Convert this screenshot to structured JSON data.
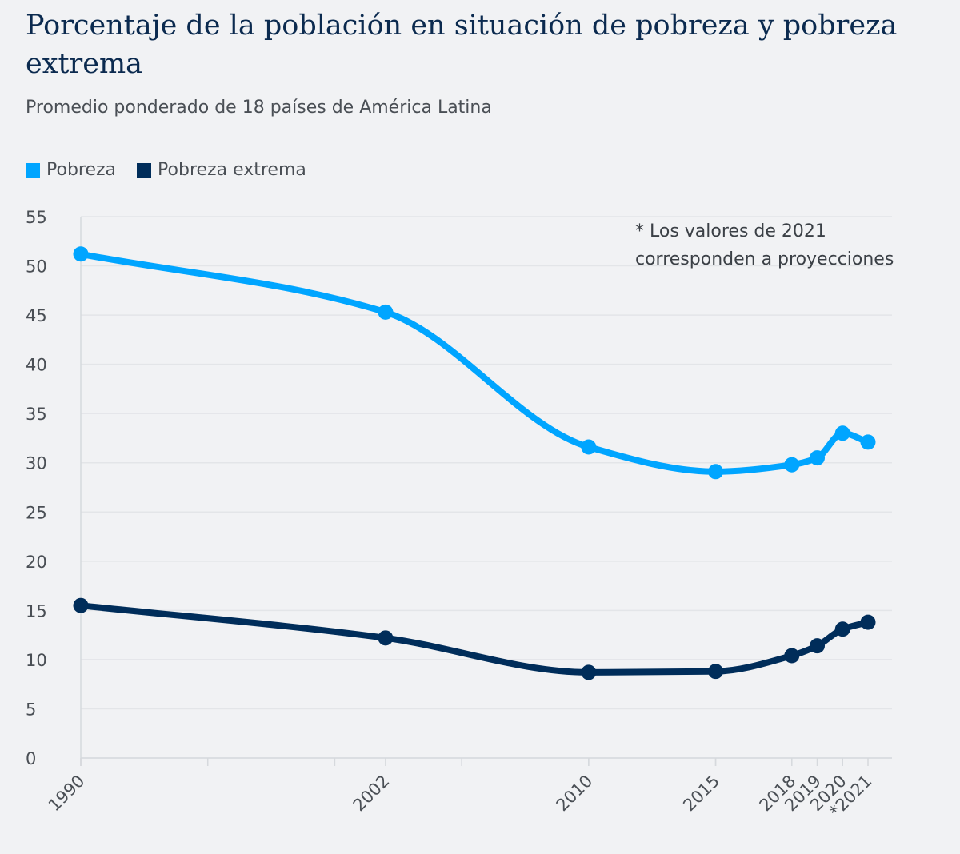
{
  "title": "Porcentaje de la población en situación de pobreza y pobreza extrema",
  "subtitle": "Promedio ponderado de 18 países de América Latina",
  "note": [
    "* Los valores de 2021",
    "corresponden a proyecciones"
  ],
  "colors": {
    "pobreza": "#00a5ff",
    "extrema": "#002d5a",
    "grid": "#e3e5e8",
    "text": "#4a4f55"
  },
  "chart_data": {
    "type": "line",
    "title": "Porcentaje de la población en situación de pobreza y pobreza extrema",
    "subtitle": "Promedio ponderado de 18 países de América Latina",
    "xlabel": "",
    "ylabel": "",
    "ylim": [
      0,
      55
    ],
    "yticks": [
      0,
      5,
      10,
      15,
      20,
      25,
      30,
      35,
      40,
      45,
      50,
      55
    ],
    "xlim": [
      1990,
      2021
    ],
    "x": [
      1990,
      2002,
      2010,
      2015,
      2018,
      2019,
      2020,
      2021
    ],
    "x_labels": [
      "1990",
      "2002",
      "2010",
      "2015",
      "2018",
      "2019",
      "2020",
      "*2021"
    ],
    "series": [
      {
        "name": "Pobreza",
        "key": "pobreza",
        "values": [
          51.2,
          45.3,
          31.6,
          29.1,
          29.8,
          30.5,
          33.0,
          32.1
        ]
      },
      {
        "name": "Pobreza extrema",
        "key": "extrema",
        "values": [
          15.5,
          12.2,
          8.7,
          8.8,
          10.4,
          11.4,
          13.1,
          13.8
        ]
      }
    ],
    "legend": "top-left",
    "grid": true
  }
}
